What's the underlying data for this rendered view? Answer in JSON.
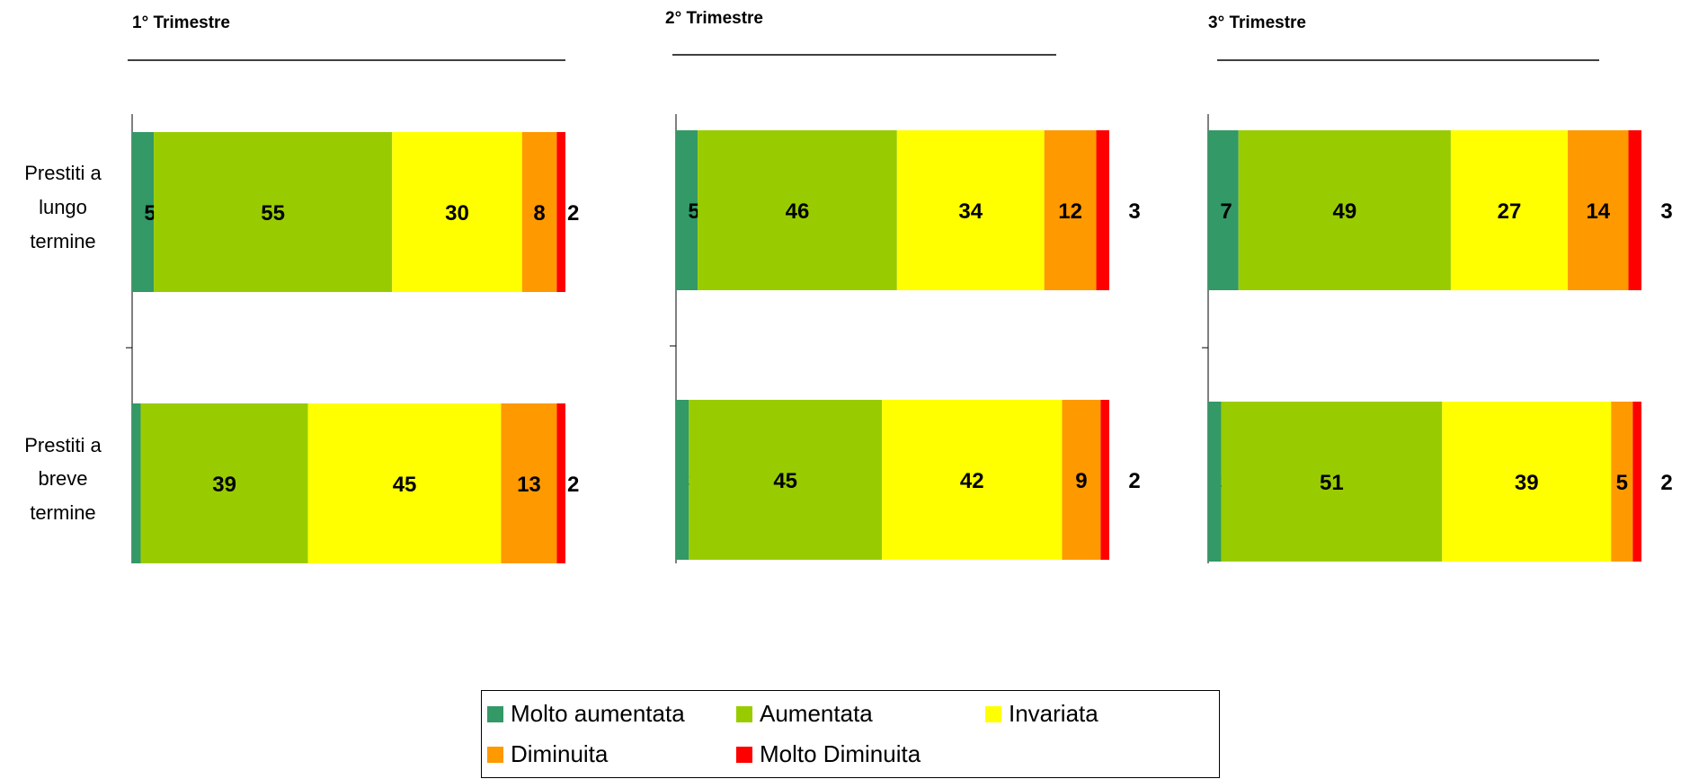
{
  "chart_data": {
    "type": "bar",
    "orientation": "horizontal",
    "stacked": true,
    "categories": [
      "Prestiti a lungo termine",
      "Prestiti a breve termine"
    ],
    "category_lines": [
      [
        "Prestiti a",
        "lungo",
        "termine"
      ],
      [
        "Prestiti a",
        "breve",
        "termine"
      ]
    ],
    "series_names": [
      "Molto aumentata",
      "Aumentata",
      "Invariata",
      "Diminuita",
      "Molto Diminuita"
    ],
    "colors": [
      "#339966",
      "#99CC00",
      "#FFFF00",
      "#FF9900",
      "#FF0000"
    ],
    "panels": [
      {
        "title": "1° Trimestre",
        "values": [
          [
            5,
            55,
            30,
            8,
            2
          ],
          [
            2,
            39,
            45,
            13,
            2
          ]
        ]
      },
      {
        "title": "2° Trimestre",
        "values": [
          [
            5,
            46,
            34,
            12,
            3
          ],
          [
            3,
            45,
            42,
            9,
            2
          ]
        ]
      },
      {
        "title": "3° Trimestre",
        "values": [
          [
            7,
            49,
            27,
            14,
            3
          ],
          [
            3,
            51,
            39,
            5,
            2
          ]
        ]
      }
    ]
  },
  "legend": {
    "items": [
      {
        "label": "Molto aumentata",
        "color": "#339966"
      },
      {
        "label": "Aumentata",
        "color": "#99CC00"
      },
      {
        "label": "Invariata",
        "color": "#FFFF00"
      },
      {
        "label": "Diminuita",
        "color": "#FF9900"
      },
      {
        "label": "Molto Diminuita",
        "color": "#FF0000"
      }
    ]
  }
}
